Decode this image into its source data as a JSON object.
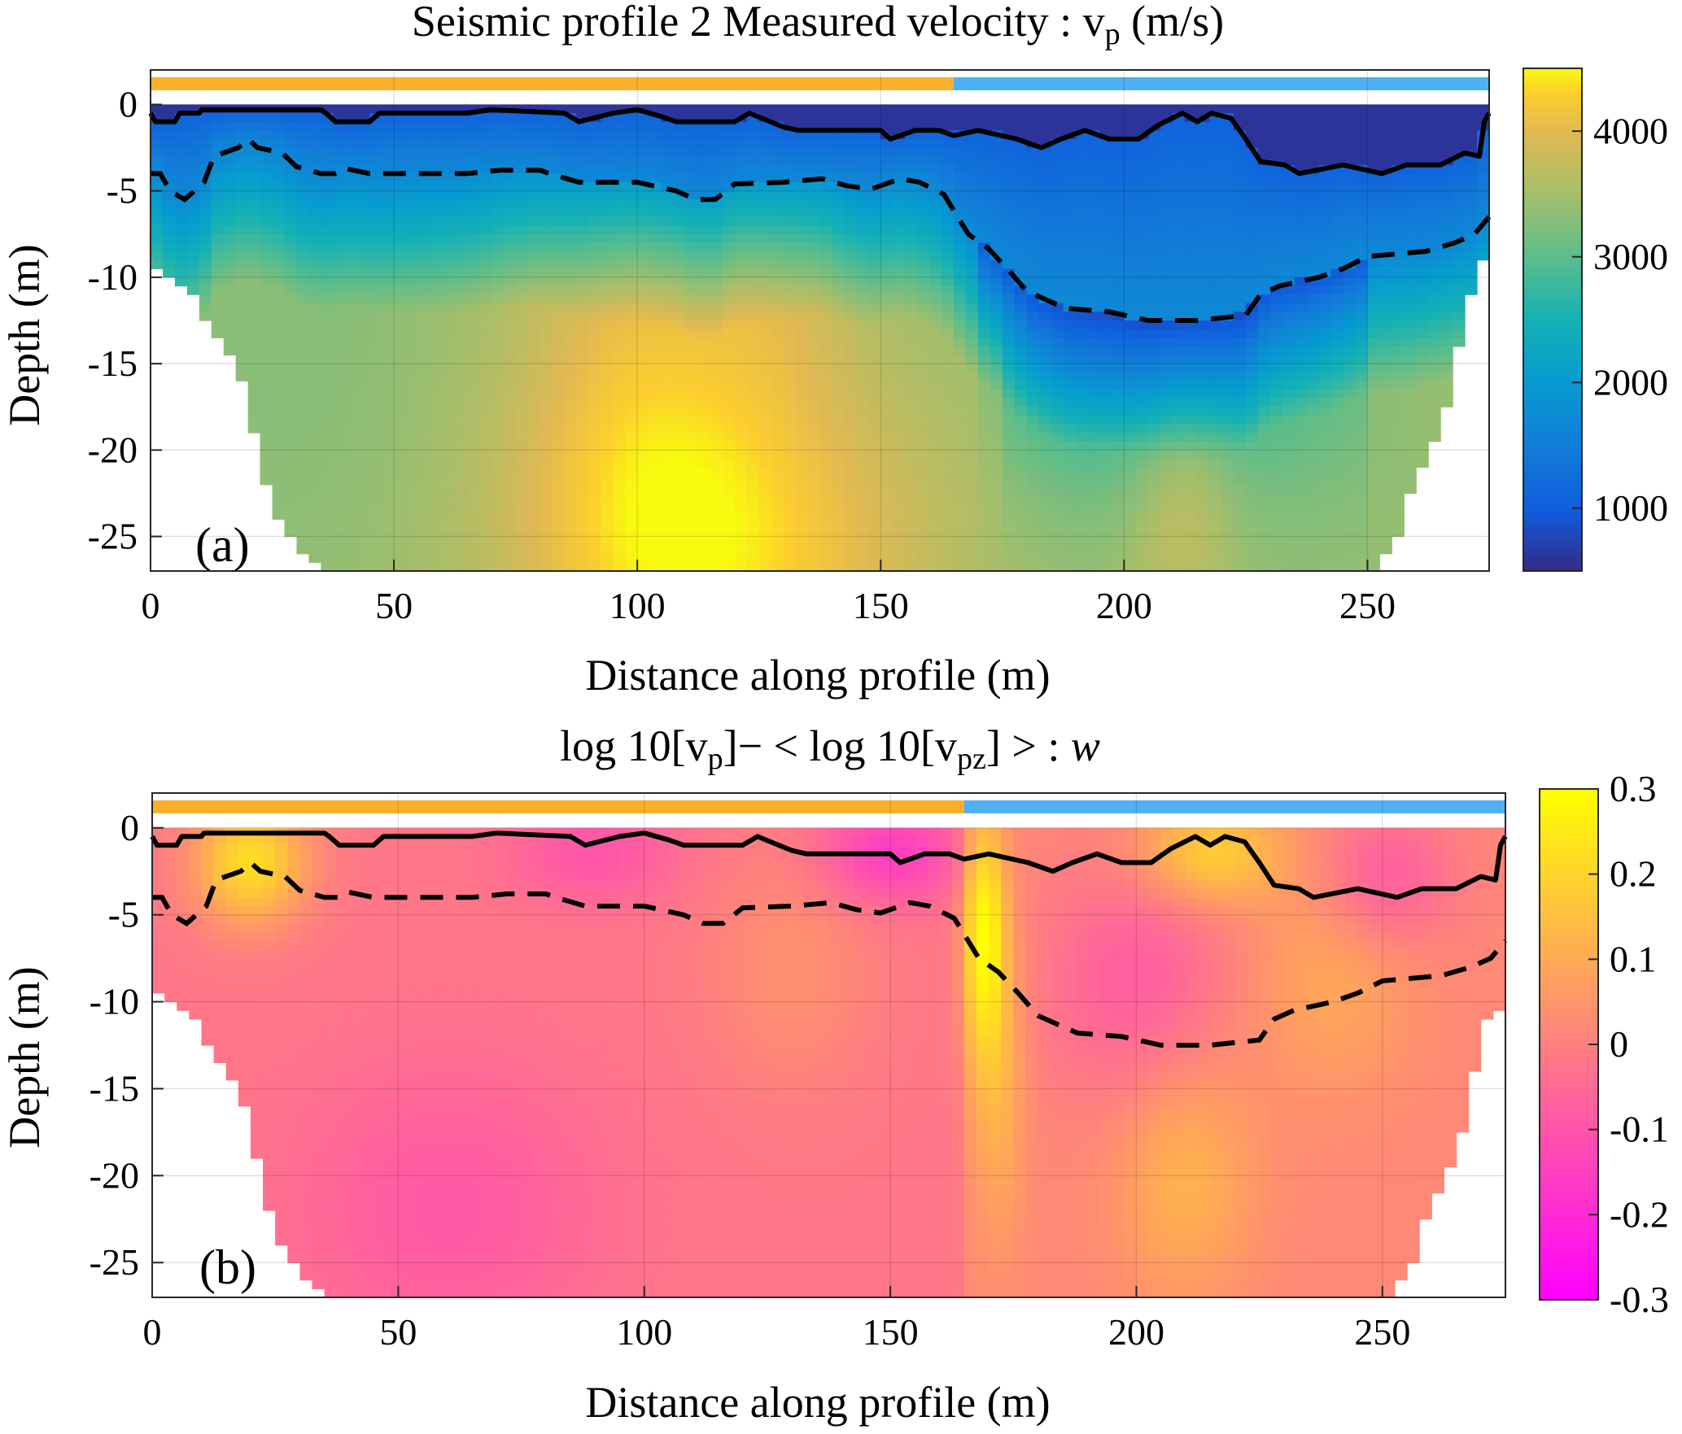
{
  "chart_data": [
    {
      "type": "heatmap",
      "title": "Seismic profile 2 Measured velocity : vp (m/s)",
      "title_parts": {
        "pre": "Seismic profile 2 Measured velocity : v",
        "sub": "p",
        "post": " (m/s)"
      },
      "panel_label": "(a)",
      "xlabel": "Distance along profile (m)",
      "ylabel": "Depth (m)",
      "xlim": [
        0,
        275
      ],
      "ylim": [
        -27,
        2
      ],
      "xticks": [
        0,
        50,
        100,
        150,
        200,
        250
      ],
      "yticks": [
        0,
        -5,
        -10,
        -15,
        -20,
        -25
      ],
      "grid": true,
      "colorbar": {
        "colormap": "parula",
        "ticks": [
          4000,
          3000,
          2000,
          1000
        ],
        "range": [
          500,
          4500
        ]
      },
      "top_bar": [
        {
          "x_start": 0,
          "x_end": 165,
          "color": "#fbb02d"
        },
        {
          "x_start": 165,
          "x_end": 275,
          "color": "#4fb0f5"
        }
      ],
      "lines": {
        "solid": [
          [
            0,
            -0.5
          ],
          [
            1,
            -1
          ],
          [
            5,
            -1
          ],
          [
            6,
            -0.5
          ],
          [
            10,
            -0.5
          ],
          [
            10.5,
            -0.3
          ],
          [
            35,
            -0.3
          ],
          [
            36,
            -0.5
          ],
          [
            38,
            -1
          ],
          [
            45,
            -1
          ],
          [
            47,
            -0.5
          ],
          [
            65,
            -0.5
          ],
          [
            70,
            -0.3
          ],
          [
            85,
            -0.5
          ],
          [
            88,
            -1
          ],
          [
            95,
            -0.5
          ],
          [
            100,
            -0.3
          ],
          [
            105,
            -0.7
          ],
          [
            108,
            -1
          ],
          [
            120,
            -1
          ],
          [
            123,
            -0.5
          ],
          [
            130,
            -1.3
          ],
          [
            133,
            -1.5
          ],
          [
            150,
            -1.5
          ],
          [
            152,
            -2
          ],
          [
            157,
            -1.5
          ],
          [
            162,
            -1.5
          ],
          [
            165,
            -1.8
          ],
          [
            170,
            -1.5
          ],
          [
            178,
            -2
          ],
          [
            183,
            -2.5
          ],
          [
            187,
            -2
          ],
          [
            192,
            -1.5
          ],
          [
            197,
            -2
          ],
          [
            203,
            -2
          ],
          [
            207,
            -1.2
          ],
          [
            212,
            -0.5
          ],
          [
            215,
            -1
          ],
          [
            218,
            -0.5
          ],
          [
            222,
            -0.8
          ],
          [
            225,
            -2
          ],
          [
            228,
            -3.3
          ],
          [
            233,
            -3.5
          ],
          [
            236,
            -4
          ],
          [
            245,
            -3.5
          ],
          [
            253,
            -4
          ],
          [
            258,
            -3.5
          ],
          [
            265,
            -3.5
          ],
          [
            270,
            -2.8
          ],
          [
            273,
            -3
          ],
          [
            274,
            -1
          ],
          [
            275,
            -0.5
          ]
        ],
        "dashed": [
          [
            0,
            -4
          ],
          [
            2,
            -4
          ],
          [
            4,
            -5
          ],
          [
            7,
            -5.5
          ],
          [
            11,
            -4.5
          ],
          [
            13,
            -3
          ],
          [
            15,
            -2.8
          ],
          [
            18,
            -2.5
          ],
          [
            20,
            -2
          ],
          [
            22,
            -2.5
          ],
          [
            27,
            -2.8
          ],
          [
            30,
            -3.6
          ],
          [
            35,
            -4
          ],
          [
            38,
            -4
          ],
          [
            40,
            -3.7
          ],
          [
            45,
            -4
          ],
          [
            65,
            -4
          ],
          [
            72,
            -3.8
          ],
          [
            80,
            -3.8
          ],
          [
            82,
            -4
          ],
          [
            88,
            -4.5
          ],
          [
            100,
            -4.5
          ],
          [
            108,
            -5
          ],
          [
            112,
            -5.5
          ],
          [
            116,
            -5.5
          ],
          [
            120,
            -4.6
          ],
          [
            130,
            -4.5
          ],
          [
            138,
            -4.3
          ],
          [
            143,
            -4.7
          ],
          [
            148,
            -4.9
          ],
          [
            154,
            -4.3
          ],
          [
            158,
            -4.5
          ],
          [
            163,
            -5.2
          ],
          [
            168,
            -7.5
          ],
          [
            172,
            -8.3
          ],
          [
            176,
            -9.5
          ],
          [
            180,
            -10.8
          ],
          [
            188,
            -11.8
          ],
          [
            197,
            -12
          ],
          [
            205,
            -12.5
          ],
          [
            215,
            -12.5
          ],
          [
            225,
            -12.2
          ],
          [
            228,
            -11
          ],
          [
            232,
            -10.5
          ],
          [
            240,
            -10
          ],
          [
            245,
            -9.5
          ],
          [
            250,
            -8.8
          ],
          [
            262,
            -8.5
          ],
          [
            268,
            -8
          ],
          [
            272,
            -7.5
          ],
          [
            275,
            -6.5
          ]
        ]
      },
      "hull_left": [
        [
          0,
          -9
        ],
        [
          5,
          -10
        ],
        [
          9,
          -11
        ],
        [
          12,
          -13
        ],
        [
          17,
          -15
        ],
        [
          20,
          -17
        ],
        [
          22,
          -20
        ],
        [
          25,
          -23
        ],
        [
          28,
          -25
        ],
        [
          32,
          -26
        ],
        [
          35,
          -27
        ]
      ],
      "hull_right": [
        [
          275,
          -8
        ],
        [
          271,
          -11
        ],
        [
          268,
          -15
        ],
        [
          266,
          -18
        ],
        [
          263,
          -20
        ],
        [
          258,
          -23
        ],
        [
          256,
          -25
        ],
        [
          254,
          -26
        ],
        [
          251,
          -27
        ]
      ],
      "field": {
        "kind": "velocity",
        "surface_vp": 600,
        "blue_vp": 1100,
        "deep_vp": 3400,
        "anomalies": [
          {
            "x": 118,
            "z": -26,
            "vp": 4300,
            "sx": 30,
            "sz": 8
          },
          {
            "x": 100,
            "z": -15,
            "vp": 3900,
            "sx": 18,
            "sz": 12
          },
          {
            "x": 130,
            "z": -10,
            "vp": 3700,
            "sx": 12,
            "sz": 6
          },
          {
            "x": 212,
            "z": -22,
            "vp": 3900,
            "sx": 8,
            "sz": 6
          },
          {
            "x": 30,
            "z": -14,
            "vp": 3300,
            "sx": 22,
            "sz": 10
          }
        ]
      }
    },
    {
      "type": "heatmap",
      "title": "log10[vp]− < log10[vpz] > : w",
      "title_parts": {
        "a": "log 10[v",
        "sub1": "p",
        "b": "]− < log 10[v",
        "sub2": "pz",
        "c": "] > : ",
        "italic": "w"
      },
      "panel_label": "(b)",
      "xlabel": "Distance along profile (m)",
      "ylabel": "Depth (m)",
      "xlim": [
        0,
        275
      ],
      "ylim": [
        -27,
        2
      ],
      "xticks": [
        0,
        50,
        100,
        150,
        200,
        250
      ],
      "yticks": [
        0,
        -5,
        -10,
        -15,
        -20,
        -25
      ],
      "grid": true,
      "colorbar": {
        "colormap": "spring",
        "ticks": [
          "0.3",
          "0.2",
          "0.1",
          "0",
          "-0.1",
          "-0.2",
          "-0.3"
        ],
        "range": [
          -0.3,
          0.3
        ]
      },
      "top_bar": [
        {
          "x_start": 0,
          "x_end": 165,
          "color": "#fbb02d"
        },
        {
          "x_start": 165,
          "x_end": 275,
          "color": "#4fb0f5"
        }
      ],
      "lines": {
        "same_as_panel": 0
      },
      "hull_left": [
        [
          0,
          -9
        ],
        [
          5,
          -10
        ],
        [
          9,
          -11
        ],
        [
          12,
          -13
        ],
        [
          17,
          -15
        ],
        [
          20,
          -17
        ],
        [
          22,
          -20
        ],
        [
          25,
          -23
        ],
        [
          28,
          -25
        ],
        [
          32,
          -26
        ],
        [
          35,
          -27
        ]
      ],
      "hull_right": [
        [
          275,
          -10
        ],
        [
          271,
          -11
        ],
        [
          268,
          -15
        ],
        [
          266,
          -18
        ],
        [
          263,
          -20
        ],
        [
          258,
          -23
        ],
        [
          256,
          -25
        ],
        [
          254,
          -26
        ],
        [
          251,
          -27
        ]
      ],
      "field": {
        "kind": "anomaly",
        "base": 0.02,
        "anomalies": [
          {
            "x": 20,
            "z": -2,
            "w": 0.24,
            "sx": 8,
            "sz": 2.5
          },
          {
            "x": 169,
            "z": -6,
            "w": 0.25,
            "sx": 3,
            "sz": 5
          },
          {
            "x": 172,
            "z": -14,
            "w": 0.1,
            "sx": 4,
            "sz": 7
          },
          {
            "x": 215,
            "z": -1.5,
            "w": 0.17,
            "sx": 10,
            "sz": 2
          },
          {
            "x": 210,
            "z": -20,
            "w": 0.1,
            "sx": 10,
            "sz": 5
          },
          {
            "x": 130,
            "z": -8,
            "w": 0.06,
            "sx": 12,
            "sz": 5
          },
          {
            "x": 240,
            "z": -8,
            "w": 0.08,
            "sx": 12,
            "sz": 5
          },
          {
            "x": 150,
            "z": -1.5,
            "w": -0.14,
            "sx": 10,
            "sz": 2
          },
          {
            "x": 200,
            "z": -9,
            "w": -0.1,
            "sx": 14,
            "sz": 5
          },
          {
            "x": 90,
            "z": -1.5,
            "w": -0.08,
            "sx": 12,
            "sz": 2
          },
          {
            "x": 60,
            "z": -22,
            "w": -0.07,
            "sx": 22,
            "sz": 6
          },
          {
            "x": 250,
            "z": -3,
            "w": -0.12,
            "sx": 10,
            "sz": 3
          }
        ]
      }
    }
  ]
}
